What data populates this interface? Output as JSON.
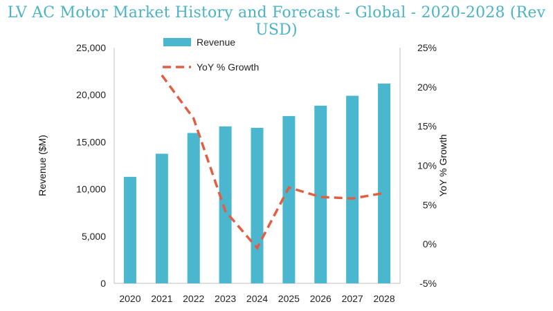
{
  "chart_data": {
    "type": "bar",
    "title": "LV AC Motor Market History and Forecast - Global - 2020-2028 (Rev USD)",
    "categories": [
      "2020",
      "2021",
      "2022",
      "2023",
      "2024",
      "2025",
      "2026",
      "2027",
      "2028"
    ],
    "series": [
      {
        "name": "Revenue",
        "type": "bar",
        "axis": "left",
        "color": "#4bb7cf",
        "values": [
          11300,
          13750,
          15950,
          16650,
          16500,
          17750,
          18850,
          19900,
          21200
        ]
      },
      {
        "name": "YoY % Growth",
        "type": "line",
        "style": "dashed",
        "axis": "right",
        "color": "#e05f44",
        "values": [
          null,
          21.5,
          16.0,
          4.2,
          -0.5,
          7.2,
          6.0,
          5.8,
          6.5
        ]
      }
    ],
    "ylabel": "Revenue ($M)",
    "y2label": "YoY % Growth",
    "ylim": [
      0,
      25000
    ],
    "yticks": [
      0,
      5000,
      10000,
      15000,
      20000,
      25000
    ],
    "ytick_labels": [
      "0",
      "5,000",
      "10,000",
      "15,000",
      "20,000",
      "25,000"
    ],
    "y2lim": [
      -5,
      25
    ],
    "y2ticks": [
      -5,
      0,
      5,
      10,
      15,
      20,
      25
    ],
    "y2tick_labels": [
      "-5%",
      "0%",
      "5%",
      "10%",
      "15%",
      "20%",
      "25%"
    ],
    "legend_position": "top"
  }
}
